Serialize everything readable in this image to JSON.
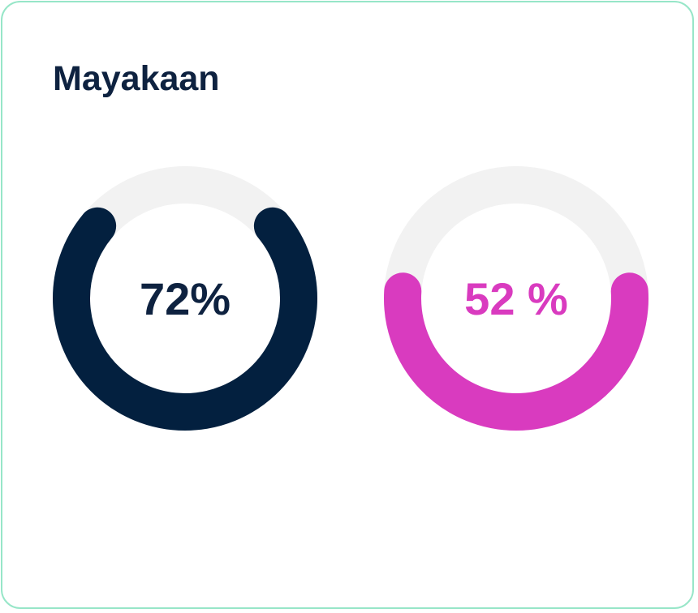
{
  "card": {
    "title": "Mayakaan"
  },
  "gauges": [
    {
      "label": "72%",
      "value_percent": 72,
      "color": "#03203f",
      "track_color": "#f2f2f2",
      "text_color": "#0e2240"
    },
    {
      "label": "52 %",
      "value_percent": 52,
      "color": "#d93bbf",
      "track_color": "#f2f2f2",
      "text_color": "#d93bbf"
    }
  ]
}
